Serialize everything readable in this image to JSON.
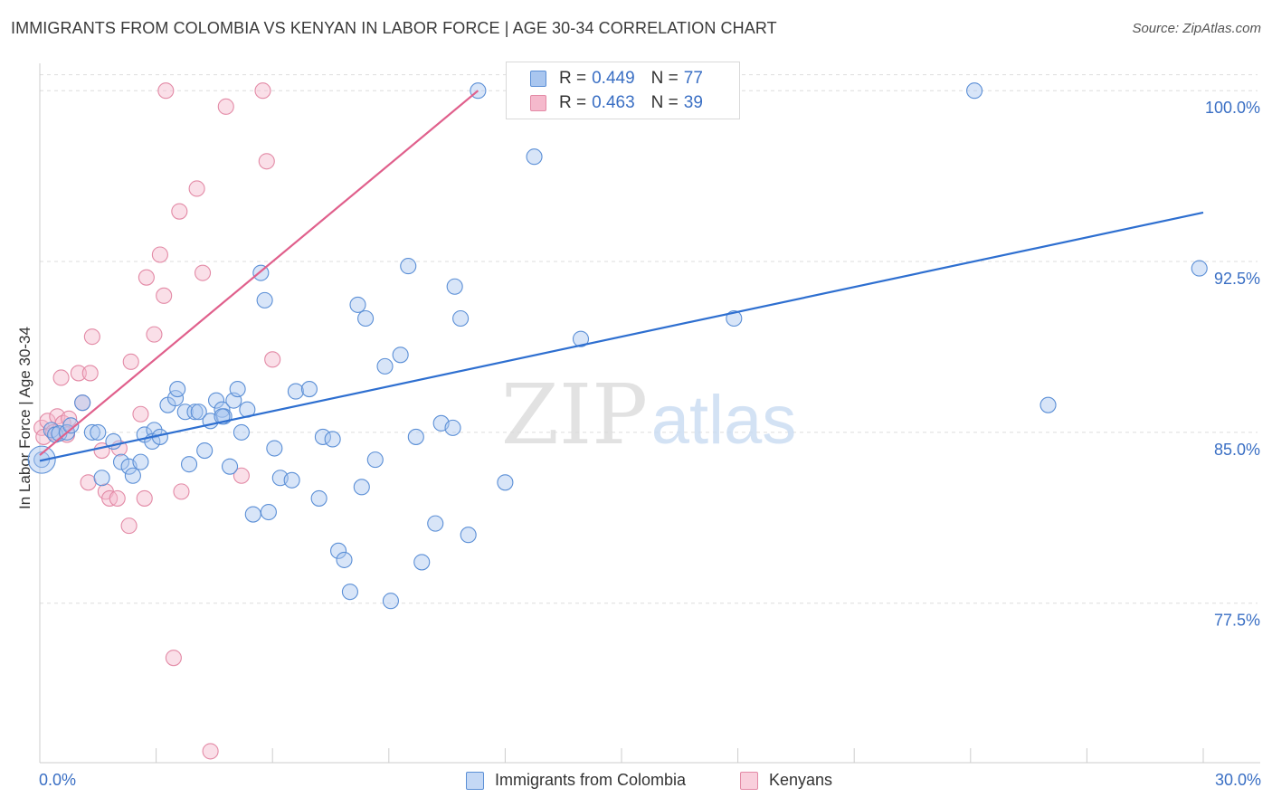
{
  "title": "IMMIGRANTS FROM COLOMBIA VS KENYAN IN LABOR FORCE | AGE 30-34 CORRELATION CHART",
  "source": "Source: ZipAtlas.com",
  "watermark": {
    "zip": "ZIP",
    "atlas": "atlas"
  },
  "legend": {
    "rows": [
      {
        "r_label": "R =",
        "r_value": "0.449",
        "n_label": "N =",
        "n_value": "77"
      },
      {
        "r_label": "R =",
        "r_value": "0.463",
        "n_label": "N =",
        "n_value": "39"
      }
    ]
  },
  "bottom_legend": [
    "Immigrants from Colombia",
    "Kenyans"
  ],
  "colors": {
    "blue_fill": "#a9c6ef",
    "blue_stroke": "#5b8fd6",
    "blue_line": "#2e6fd0",
    "pink_fill": "#f5b9cc",
    "pink_stroke": "#e38aa6",
    "pink_line": "#e0608c",
    "tick_label": "#3a6fc4",
    "grid": "#dddddd"
  },
  "chart_data": {
    "type": "scatter",
    "title": "IMMIGRANTS FROM COLOMBIA VS KENYAN IN LABOR FORCE | AGE 30-34 CORRELATION CHART",
    "xlabel": "",
    "ylabel": "In Labor Force | Age 30-34",
    "xlim": [
      0,
      30
    ],
    "ylim": [
      70.5,
      101.2
    ],
    "x_tick_labels": [
      "0.0%",
      "30.0%"
    ],
    "y_ticks": [
      77.5,
      85.0,
      92.5,
      100.0
    ],
    "y_tick_labels": [
      "77.5%",
      "85.0%",
      "92.5%",
      "100.0%"
    ],
    "grid": "horizontal dashed",
    "legend_position": "top-center",
    "series": [
      {
        "name": "Immigrants from Colombia",
        "color": "#a9c6ef",
        "trend": [
          [
            0,
            83.75
          ],
          [
            30,
            94.65
          ]
        ],
        "points": [
          [
            0.05,
            83.8
          ],
          [
            0.3,
            85.1
          ],
          [
            0.4,
            84.9
          ],
          [
            0.5,
            84.95
          ],
          [
            0.7,
            85.0
          ],
          [
            0.8,
            85.3
          ],
          [
            1.1,
            86.3
          ],
          [
            1.35,
            85.0
          ],
          [
            1.5,
            85.0
          ],
          [
            1.6,
            83.0
          ],
          [
            1.9,
            84.6
          ],
          [
            2.1,
            83.7
          ],
          [
            2.3,
            83.5
          ],
          [
            2.4,
            83.1
          ],
          [
            2.6,
            83.7
          ],
          [
            2.7,
            84.9
          ],
          [
            2.95,
            85.1
          ],
          [
            2.9,
            84.6
          ],
          [
            3.1,
            84.8
          ],
          [
            3.3,
            86.2
          ],
          [
            3.5,
            86.5
          ],
          [
            3.55,
            86.9
          ],
          [
            3.75,
            85.9
          ],
          [
            3.85,
            83.6
          ],
          [
            4.0,
            85.9
          ],
          [
            4.1,
            85.9
          ],
          [
            4.25,
            84.2
          ],
          [
            4.4,
            85.5
          ],
          [
            4.55,
            86.4
          ],
          [
            4.7,
            86.0
          ],
          [
            4.75,
            85.7
          ],
          [
            4.7,
            85.7
          ],
          [
            4.9,
            83.5
          ],
          [
            5.0,
            86.4
          ],
          [
            5.1,
            86.9
          ],
          [
            5.2,
            85.0
          ],
          [
            5.35,
            86.0
          ],
          [
            5.5,
            81.4
          ],
          [
            5.7,
            92.0
          ],
          [
            5.8,
            90.8
          ],
          [
            5.9,
            81.5
          ],
          [
            6.05,
            84.3
          ],
          [
            6.2,
            83.0
          ],
          [
            6.5,
            82.9
          ],
          [
            6.6,
            86.8
          ],
          [
            6.95,
            86.9
          ],
          [
            7.2,
            82.1
          ],
          [
            7.3,
            84.8
          ],
          [
            7.55,
            84.7
          ],
          [
            7.7,
            79.8
          ],
          [
            7.85,
            79.4
          ],
          [
            8.0,
            78.0
          ],
          [
            8.2,
            90.6
          ],
          [
            8.3,
            82.6
          ],
          [
            8.4,
            90.0
          ],
          [
            8.65,
            83.8
          ],
          [
            8.9,
            87.9
          ],
          [
            9.05,
            77.6
          ],
          [
            9.3,
            88.4
          ],
          [
            9.5,
            92.3
          ],
          [
            9.7,
            84.8
          ],
          [
            9.85,
            79.3
          ],
          [
            10.2,
            81.0
          ],
          [
            10.35,
            85.4
          ],
          [
            10.65,
            85.2
          ],
          [
            10.7,
            91.4
          ],
          [
            10.85,
            90.0
          ],
          [
            11.05,
            80.5
          ],
          [
            11.3,
            100.0
          ],
          [
            12.0,
            82.8
          ],
          [
            12.75,
            97.1
          ],
          [
            13.95,
            89.1
          ],
          [
            17.4,
            100.0
          ],
          [
            17.9,
            90.0
          ],
          [
            24.1,
            100.0
          ],
          [
            26.0,
            86.2
          ],
          [
            29.9,
            92.2
          ]
        ]
      },
      {
        "name": "Kenyans",
        "color": "#f5b9cc",
        "trend": [
          [
            0,
            84.0
          ],
          [
            11.3,
            100.0
          ]
        ],
        "points": [
          [
            0.05,
            85.2
          ],
          [
            0.1,
            84.8
          ],
          [
            0.2,
            85.5
          ],
          [
            0.35,
            85.0
          ],
          [
            0.45,
            85.7
          ],
          [
            0.55,
            87.4
          ],
          [
            0.6,
            85.4
          ],
          [
            0.7,
            84.9
          ],
          [
            0.75,
            85.6
          ],
          [
            1.0,
            87.6
          ],
          [
            1.1,
            86.3
          ],
          [
            1.25,
            82.8
          ],
          [
            1.3,
            87.6
          ],
          [
            1.35,
            89.2
          ],
          [
            1.6,
            84.2
          ],
          [
            1.7,
            82.4
          ],
          [
            1.8,
            82.1
          ],
          [
            2.0,
            82.1
          ],
          [
            2.05,
            84.3
          ],
          [
            2.3,
            80.9
          ],
          [
            2.35,
            88.1
          ],
          [
            2.6,
            85.8
          ],
          [
            2.7,
            82.1
          ],
          [
            2.75,
            91.8
          ],
          [
            2.95,
            89.3
          ],
          [
            3.1,
            92.8
          ],
          [
            3.2,
            91.0
          ],
          [
            3.25,
            100.0
          ],
          [
            3.45,
            75.1
          ],
          [
            3.6,
            94.7
          ],
          [
            3.65,
            82.4
          ],
          [
            4.05,
            95.7
          ],
          [
            4.2,
            92.0
          ],
          [
            4.4,
            71.0
          ],
          [
            4.8,
            99.3
          ],
          [
            5.2,
            83.1
          ],
          [
            5.75,
            100.0
          ],
          [
            5.85,
            96.9
          ],
          [
            6.0,
            88.2
          ]
        ]
      }
    ]
  }
}
